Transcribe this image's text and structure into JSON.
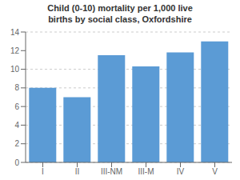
{
  "chart_data": {
    "type": "bar",
    "title": "Child (0-10) mortality per 1,000 live\nbirths by social class, Oxfordshire",
    "categories": [
      "I",
      "II",
      "III-NM",
      "III-M",
      "IV",
      "V"
    ],
    "values": [
      8.0,
      7.0,
      11.5,
      10.3,
      11.8,
      13.0
    ],
    "color": "#5B9BD5",
    "ylim": [
      0,
      14
    ],
    "yticks": [
      0,
      2,
      4,
      6,
      8,
      10,
      12,
      14
    ],
    "grid": true
  }
}
